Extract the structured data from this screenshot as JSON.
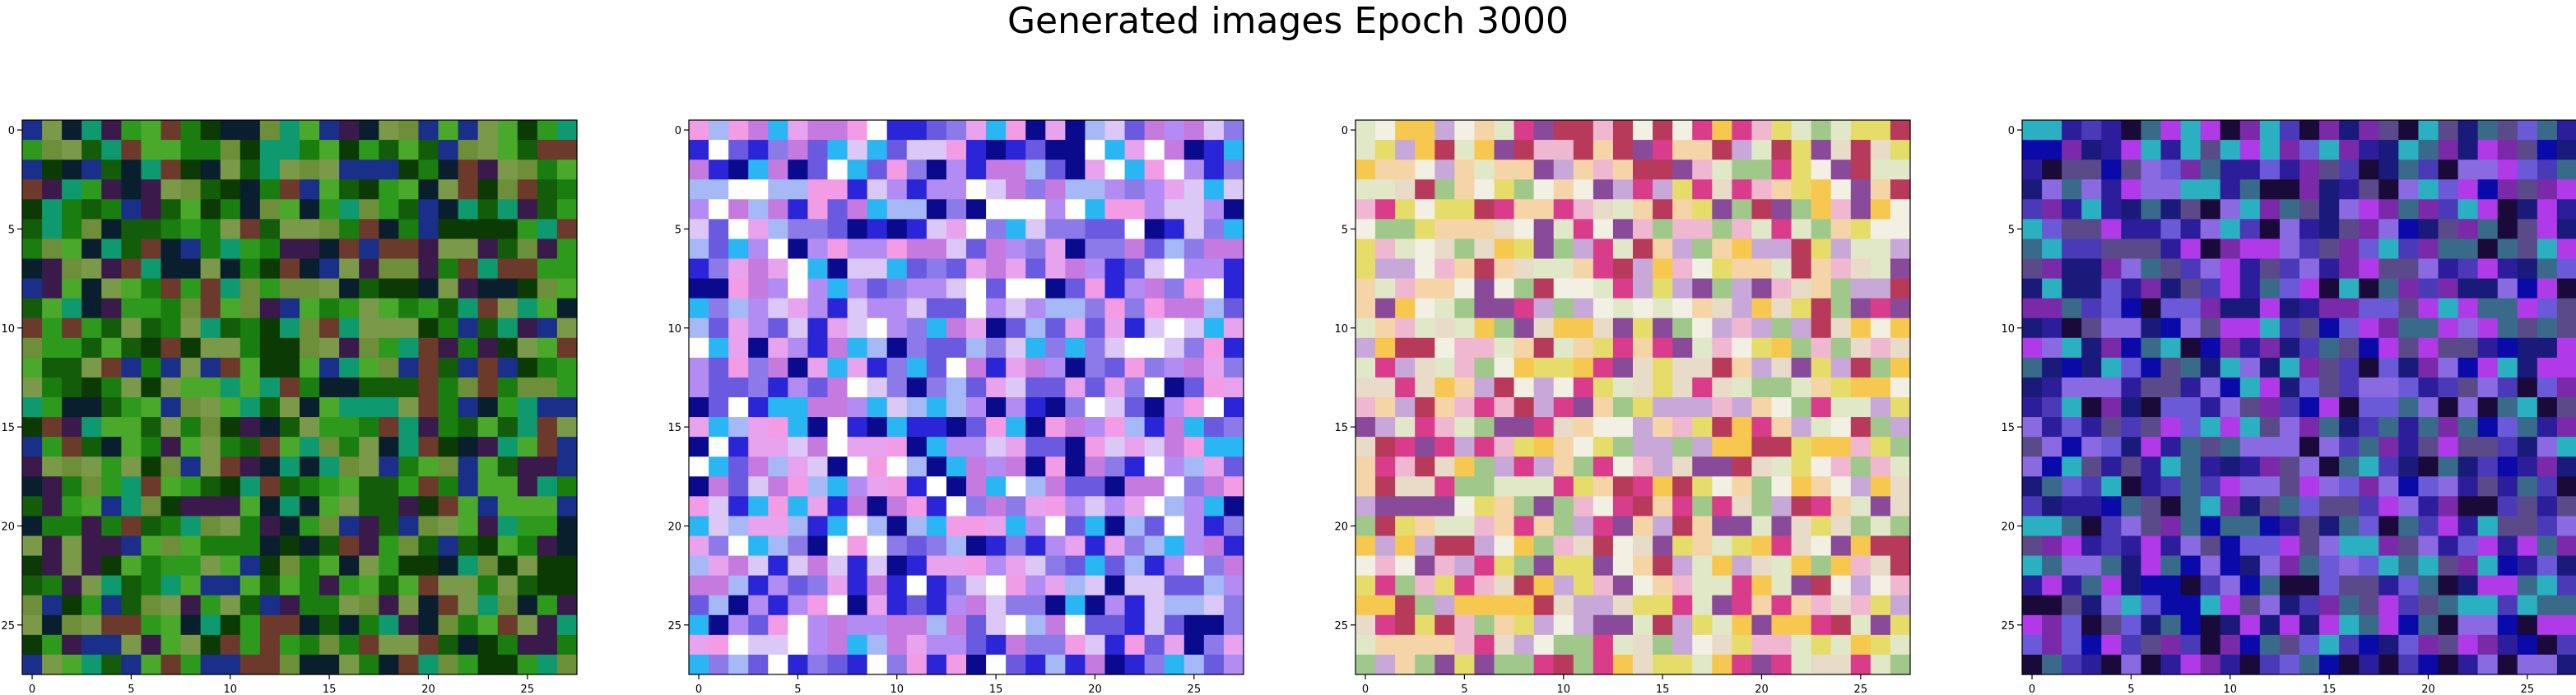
{
  "figure": {
    "title": "Generated images Epoch 3000"
  },
  "panels": [
    {
      "grid_size": 28,
      "xticks": [
        0,
        5,
        10,
        15,
        20,
        25
      ],
      "yticks": [
        0,
        5,
        10,
        15,
        20,
        25
      ],
      "palette": [
        "#0b3a05",
        "#125c0a",
        "#1a7d10",
        "#2d9a1d",
        "#4aa82a",
        "#6e8f3a",
        "#0a1f2e",
        "#1a2f8a",
        "#0e9a6e",
        "#6b3a2a",
        "#3a1a4a",
        "#7a9a4a"
      ]
    },
    {
      "grid_size": 28,
      "xticks": [
        0,
        5,
        10,
        15,
        20,
        25
      ],
      "yticks": [
        0,
        5,
        10,
        15,
        20,
        25
      ],
      "palette": [
        "#b28cf2",
        "#8b7ae8",
        "#6a5ae0",
        "#a6b8f6",
        "#dcc8f6",
        "#e7a3ee",
        "#2a26d8",
        "#2ab6f2",
        "#f29ce6",
        "#c47adf",
        "#0a0a8c",
        "#ffffff"
      ]
    },
    {
      "grid_size": 28,
      "xticks": [
        0,
        5,
        10,
        15,
        20,
        25
      ],
      "yticks": [
        0,
        5,
        10,
        15,
        20,
        25
      ],
      "palette": [
        "#f0b8d0",
        "#f5d4a8",
        "#e8dcc8",
        "#d93c8a",
        "#c8a8d8",
        "#e6dc6a",
        "#f2f0e2",
        "#b83a5a",
        "#a0c88a",
        "#e0e8c8",
        "#8a4a9a",
        "#f7c850"
      ]
    },
    {
      "grid_size": 28,
      "xticks": [
        0,
        5,
        10,
        15,
        20,
        25
      ],
      "yticks": [
        0,
        5,
        10,
        15,
        20,
        25
      ],
      "palette": [
        "#4a3ab8",
        "#2c1e9a",
        "#6a5ad8",
        "#8a6ae0",
        "#1a1a7a",
        "#5a4a8a",
        "#3a6a8a",
        "#7a2aa8",
        "#1a0a3a",
        "#2ab0c0",
        "#b03ae8",
        "#0a0aa8"
      ]
    }
  ]
}
